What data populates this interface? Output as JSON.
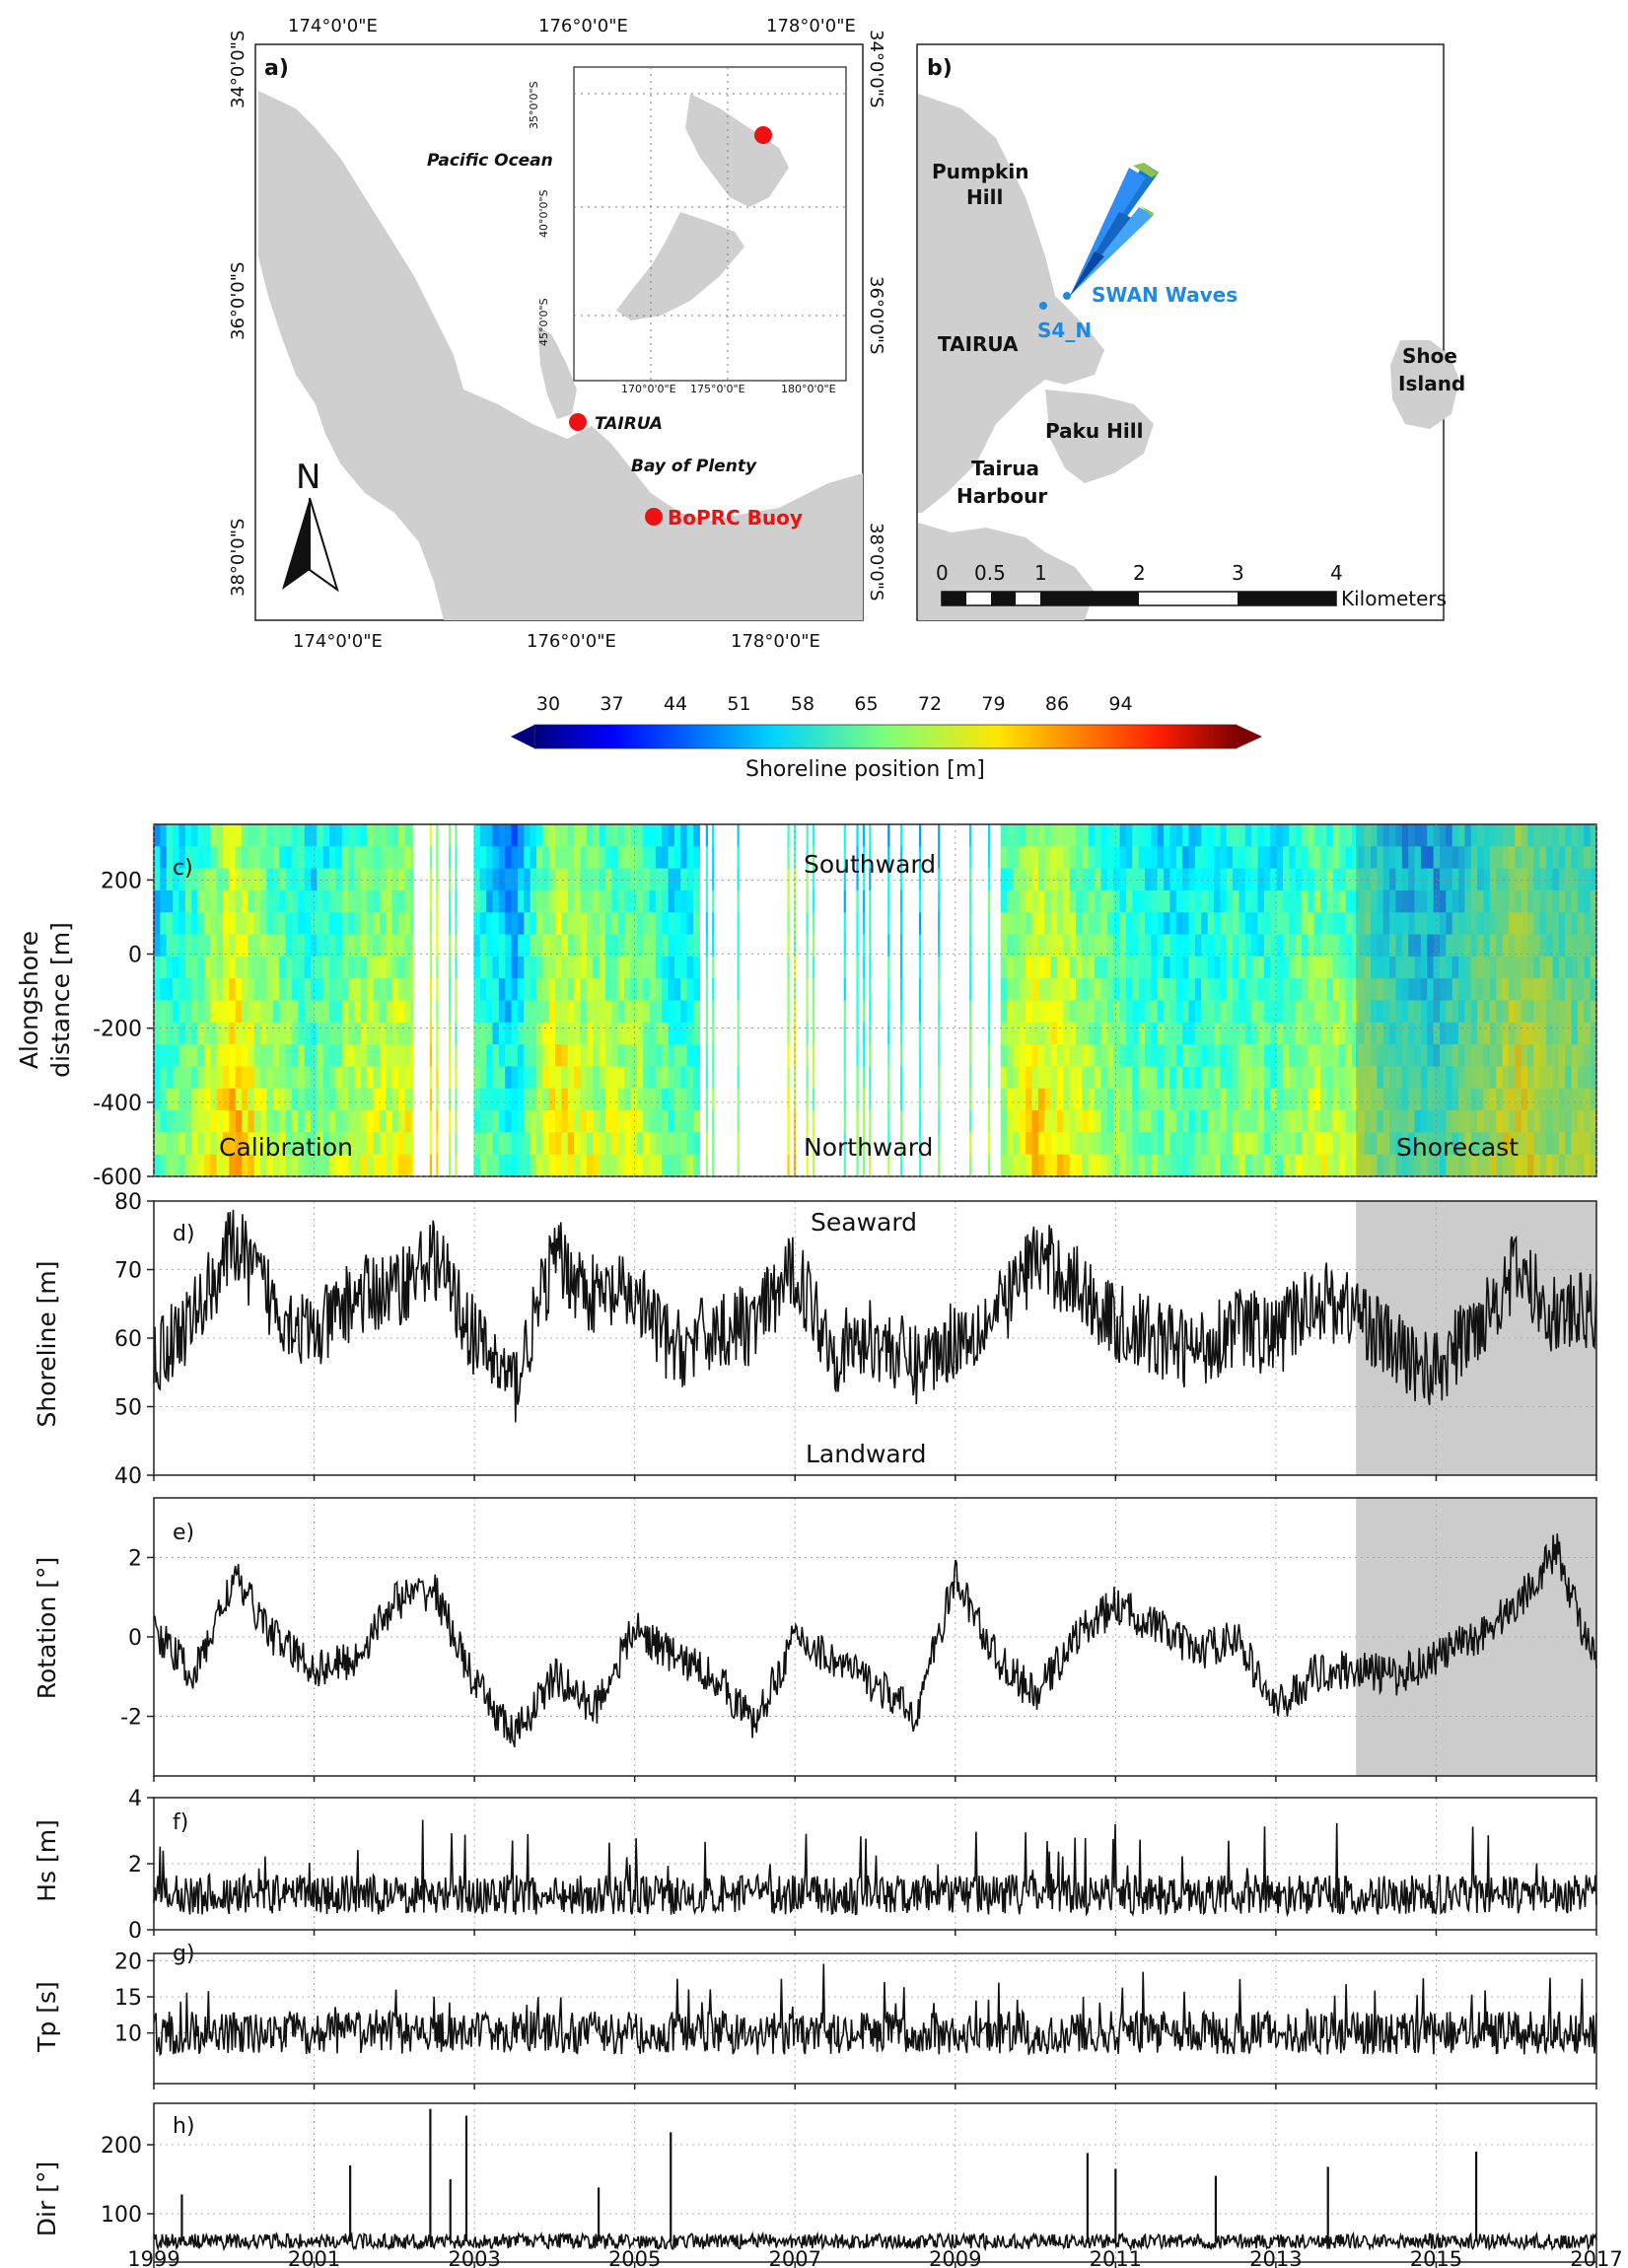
{
  "map_a": {
    "panel": "a)",
    "lon_ticks": [
      "174°0'0\"E",
      "176°0'0\"E",
      "178°0'0\"E"
    ],
    "lat_ticks": [
      "34°0'0\"S",
      "36°0'0\"S",
      "38°0'0\"S"
    ],
    "pacific": "Pacific Ocean",
    "bay": "Bay of Plenty",
    "tairua": "TAIRUA",
    "buoy": "BoPRC Buoy",
    "north": "N",
    "marker_color": "#ee1111",
    "inset": {
      "lon_ticks": [
        "170°0'0\"E",
        "175°0'0\"E",
        "180°0'0\"E"
      ],
      "lat_ticks": [
        "35°0'0\"S",
        "40°0'0\"S",
        "45°0'0\"S"
      ]
    }
  },
  "map_b": {
    "panel": "b)",
    "pumpkin": [
      "Pumpkin",
      "Hill"
    ],
    "tairua": "TAIRUA",
    "paku": "Paku Hill",
    "harbour": [
      "Tairua",
      "Harbour"
    ],
    "shoe": [
      "Shoe",
      "Island"
    ],
    "swan": "SWAN Waves",
    "s4n": "S4_N",
    "scale_ticks": [
      "0",
      "0.5",
      "1",
      "2",
      "3",
      "4"
    ],
    "scale_unit": "Kilometers",
    "label_color": "#1e88e5"
  },
  "colorbar": {
    "ticks": [
      "30",
      "37",
      "44",
      "51",
      "58",
      "65",
      "72",
      "79",
      "86",
      "94"
    ],
    "label": "Shoreline position [m]"
  },
  "chart_data": [
    {
      "panel": "c)",
      "type": "heatmap",
      "ylabel": [
        "Alongshore",
        "distance [m]"
      ],
      "ylim": [
        -600,
        350
      ],
      "yticks": [
        "200",
        "0",
        "-200",
        "-400",
        "-600"
      ],
      "annotations": {
        "top": "Southward",
        "bottom": "Northward",
        "left": "Calibration",
        "right": "Shorecast"
      },
      "xlim": [
        1999,
        2017
      ],
      "shorecast_start": 2014
    },
    {
      "panel": "d)",
      "type": "line",
      "ylabel": "Shoreline [m]",
      "ylim": [
        40,
        80
      ],
      "yticks": [
        "80",
        "70",
        "60",
        "50",
        "40"
      ],
      "annotations": {
        "top": "Seaward",
        "bottom": "Landward"
      },
      "xlim": [
        1999,
        2017
      ],
      "shorecast_start": 2014,
      "x": [
        1999.0,
        1999.5,
        2000.0,
        2000.5,
        2001.0,
        2001.5,
        2002.0,
        2002.5,
        2003.0,
        2003.5,
        2004.0,
        2004.5,
        2005.0,
        2005.5,
        2006.0,
        2006.5,
        2007.0,
        2007.5,
        2008.0,
        2008.5,
        2009.0,
        2009.5,
        2010.0,
        2010.5,
        2011.0,
        2011.5,
        2012.0,
        2012.5,
        2013.0,
        2013.5,
        2014.0,
        2014.5,
        2015.0,
        2015.5,
        2016.0,
        2016.5,
        2017.0
      ],
      "values": [
        57,
        63,
        74,
        65,
        60,
        66,
        67,
        72,
        60,
        53,
        72,
        66,
        66,
        58,
        61,
        62,
        70,
        58,
        60,
        56,
        60,
        63,
        72,
        68,
        62,
        60,
        58,
        62,
        60,
        66,
        64,
        58,
        55,
        62,
        70,
        63,
        64
      ]
    },
    {
      "panel": "e)",
      "type": "line",
      "ylabel": "Rotation [°]",
      "ylim": [
        -3.5,
        3.5
      ],
      "yticks": [
        "2",
        "0",
        "-2"
      ],
      "xlim": [
        1999,
        2017
      ],
      "shorecast_start": 2014,
      "x": [
        1999.0,
        1999.5,
        2000.0,
        2000.5,
        2001.0,
        2001.5,
        2002.0,
        2002.5,
        2003.0,
        2003.5,
        2004.0,
        2004.5,
        2005.0,
        2005.5,
        2006.0,
        2006.5,
        2007.0,
        2007.5,
        2008.0,
        2008.5,
        2009.0,
        2009.5,
        2010.0,
        2010.5,
        2011.0,
        2011.5,
        2012.0,
        2012.5,
        2013.0,
        2013.5,
        2014.0,
        2014.5,
        2015.0,
        2015.5,
        2016.0,
        2016.5,
        2017.0
      ],
      "values": [
        0.2,
        -1.0,
        1.5,
        0.0,
        -0.8,
        -0.6,
        0.9,
        1.2,
        -1.2,
        -2.5,
        -1.0,
        -1.8,
        0.2,
        -0.5,
        -1.0,
        -2.2,
        0.0,
        -0.6,
        -1.2,
        -2.0,
        1.5,
        -0.5,
        -1.5,
        0.0,
        0.8,
        0.3,
        -0.4,
        0.0,
        -1.8,
        -0.9,
        -0.8,
        -1.0,
        -0.5,
        0.0,
        0.8,
        2.2,
        -0.8
      ]
    },
    {
      "panel": "f)",
      "type": "line",
      "ylabel": "Hs [m]",
      "ylim": [
        0,
        4
      ],
      "yticks": [
        "4",
        "2",
        "0"
      ],
      "xlim": [
        1999,
        2017
      ],
      "baseline": 1.0
    },
    {
      "panel": "g)",
      "type": "line",
      "ylabel": "Tp [s]",
      "ylim": [
        3,
        21
      ],
      "yticks": [
        "20",
        "15",
        "10"
      ],
      "xlim": [
        1999,
        2017
      ],
      "baseline": 10
    },
    {
      "panel": "h)",
      "type": "line",
      "ylabel": "Dir [°]",
      "ylim": [
        30,
        260
      ],
      "yticks": [
        "200",
        "100"
      ],
      "xlim": [
        1999,
        2017
      ],
      "baseline": 60,
      "xticks": [
        "1999",
        "2001",
        "2003",
        "2005",
        "2007",
        "2009",
        "2011",
        "2013",
        "2015",
        "2017"
      ],
      "spikes": [
        {
          "x": 1999.35,
          "y": 128
        },
        {
          "x": 2001.45,
          "y": 170
        },
        {
          "x": 2002.45,
          "y": 252
        },
        {
          "x": 2002.7,
          "y": 150
        },
        {
          "x": 2002.9,
          "y": 242
        },
        {
          "x": 2004.55,
          "y": 138
        },
        {
          "x": 2005.45,
          "y": 218
        },
        {
          "x": 2010.65,
          "y": 188
        },
        {
          "x": 2011.0,
          "y": 165
        },
        {
          "x": 2012.25,
          "y": 155
        },
        {
          "x": 2013.65,
          "y": 168
        },
        {
          "x": 2015.5,
          "y": 190
        }
      ]
    }
  ]
}
